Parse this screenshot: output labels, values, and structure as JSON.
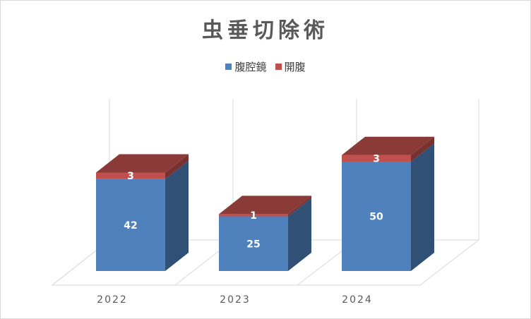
{
  "chart_data": {
    "type": "bar",
    "stacked": true,
    "three_d": true,
    "title": "虫垂切除術",
    "categories": [
      "2022",
      "2023",
      "2024"
    ],
    "series": [
      {
        "name": "腹腔鏡",
        "values": [
          42,
          25,
          50
        ],
        "color": "#4f81bd"
      },
      {
        "name": "開腹",
        "values": [
          3,
          1,
          3
        ],
        "color": "#c0504d"
      }
    ],
    "legend_position": "top",
    "grid": false,
    "data_labels": true
  }
}
